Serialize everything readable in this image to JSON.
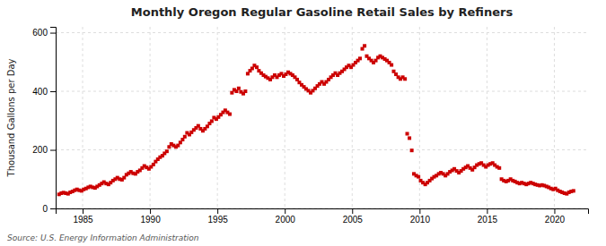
{
  "chart_data": {
    "type": "scatter",
    "title": "Monthly Oregon Regular Gasoline Retail Sales by Refiners",
    "y_label": "Thousand Gallons per Day",
    "source": "Source: U.S. Energy Information Administration",
    "xlim": [
      1983.0,
      2022.5
    ],
    "ylim": [
      0,
      620
    ],
    "yticks": [
      0,
      200,
      400,
      600
    ],
    "xticks": [
      1985,
      1990,
      1995,
      2000,
      2005,
      2010,
      2015,
      2020
    ],
    "grid": true,
    "color": "#CC0000",
    "marker": "square",
    "x": [
      1983.25,
      1983.42,
      1983.58,
      1983.75,
      1983.92,
      1984.08,
      1984.25,
      1984.42,
      1984.58,
      1984.75,
      1984.92,
      1985.08,
      1985.25,
      1985.42,
      1985.58,
      1985.75,
      1985.92,
      1986.08,
      1986.25,
      1986.42,
      1986.58,
      1986.75,
      1986.92,
      1987.08,
      1987.25,
      1987.42,
      1987.58,
      1987.75,
      1987.92,
      1988.08,
      1988.25,
      1988.42,
      1988.58,
      1988.75,
      1988.92,
      1989.08,
      1989.25,
      1989.42,
      1989.58,
      1989.75,
      1989.92,
      1990.08,
      1990.25,
      1990.42,
      1990.58,
      1990.75,
      1990.92,
      1991.08,
      1991.25,
      1991.42,
      1991.58,
      1991.75,
      1991.92,
      1992.08,
      1992.25,
      1992.42,
      1992.58,
      1992.75,
      1992.92,
      1993.08,
      1993.25,
      1993.42,
      1993.58,
      1993.75,
      1993.92,
      1994.08,
      1994.25,
      1994.42,
      1994.58,
      1994.75,
      1994.92,
      1995.08,
      1995.25,
      1995.42,
      1995.58,
      1995.75,
      1995.92,
      1996.08,
      1996.25,
      1996.42,
      1996.58,
      1996.75,
      1996.92,
      1997.08,
      1997.25,
      1997.42,
      1997.58,
      1997.75,
      1997.92,
      1998.08,
      1998.25,
      1998.42,
      1998.58,
      1998.75,
      1998.92,
      1999.08,
      1999.25,
      1999.42,
      1999.58,
      1999.75,
      1999.92,
      2000.08,
      2000.25,
      2000.42,
      2000.58,
      2000.75,
      2000.92,
      2001.08,
      2001.25,
      2001.42,
      2001.58,
      2001.75,
      2001.92,
      2002.08,
      2002.25,
      2002.42,
      2002.58,
      2002.75,
      2002.92,
      2003.08,
      2003.25,
      2003.42,
      2003.58,
      2003.75,
      2003.92,
      2004.08,
      2004.25,
      2004.42,
      2004.58,
      2004.75,
      2004.92,
      2005.08,
      2005.25,
      2005.42,
      2005.58,
      2005.75,
      2005.92,
      2006.08,
      2006.25,
      2006.42,
      2006.58,
      2006.75,
      2006.92,
      2007.08,
      2007.25,
      2007.42,
      2007.58,
      2007.75,
      2007.92,
      2008.08,
      2008.25,
      2008.42,
      2008.58,
      2008.75,
      2008.92,
      2009.08,
      2009.25,
      2009.42,
      2009.58,
      2009.75,
      2009.92,
      2010.08,
      2010.25,
      2010.42,
      2010.58,
      2010.75,
      2010.92,
      2011.08,
      2011.25,
      2011.42,
      2011.58,
      2011.75,
      2011.92,
      2012.08,
      2012.25,
      2012.42,
      2012.58,
      2012.75,
      2012.92,
      2013.08,
      2013.25,
      2013.42,
      2013.58,
      2013.75,
      2013.92,
      2014.08,
      2014.25,
      2014.42,
      2014.58,
      2014.75,
      2014.92,
      2015.08,
      2015.25,
      2015.42,
      2015.58,
      2015.75,
      2015.92,
      2016.08,
      2016.25,
      2016.42,
      2016.58,
      2016.75,
      2016.92,
      2017.08,
      2017.25,
      2017.42,
      2017.58,
      2017.75,
      2017.92,
      2018.08,
      2018.25,
      2018.42,
      2018.58,
      2018.75,
      2018.92,
      2019.08,
      2019.25,
      2019.42,
      2019.58,
      2019.75,
      2019.92,
      2020.08,
      2020.25,
      2020.42,
      2020.58,
      2020.75,
      2020.92,
      2021.08,
      2021.25,
      2021.42
    ],
    "values": [
      48,
      52,
      54,
      52,
      50,
      55,
      58,
      62,
      65,
      62,
      60,
      65,
      68,
      72,
      75,
      72,
      70,
      75,
      80,
      85,
      90,
      85,
      82,
      88,
      95,
      100,
      105,
      100,
      98,
      105,
      115,
      120,
      125,
      120,
      118,
      125,
      130,
      138,
      145,
      140,
      135,
      142,
      150,
      160,
      168,
      175,
      180,
      188,
      195,
      210,
      220,
      215,
      210,
      215,
      225,
      235,
      245,
      258,
      252,
      260,
      268,
      275,
      282,
      272,
      265,
      272,
      280,
      290,
      298,
      310,
      305,
      312,
      320,
      328,
      335,
      328,
      322,
      395,
      405,
      400,
      410,
      398,
      392,
      400,
      460,
      470,
      478,
      488,
      482,
      470,
      462,
      455,
      450,
      445,
      440,
      448,
      455,
      448,
      455,
      460,
      452,
      458,
      465,
      460,
      455,
      448,
      440,
      430,
      422,
      415,
      408,
      402,
      395,
      402,
      410,
      418,
      425,
      432,
      425,
      432,
      440,
      448,
      455,
      462,
      455,
      462,
      468,
      475,
      482,
      488,
      482,
      490,
      498,
      505,
      512,
      545,
      555,
      520,
      512,
      505,
      498,
      505,
      515,
      520,
      515,
      510,
      505,
      498,
      490,
      468,
      458,
      448,
      442,
      448,
      442,
      255,
      240,
      198,
      118,
      112,
      108,
      95,
      88,
      82,
      88,
      95,
      102,
      108,
      112,
      118,
      122,
      118,
      112,
      118,
      125,
      130,
      135,
      128,
      122,
      128,
      135,
      140,
      145,
      138,
      132,
      140,
      148,
      152,
      155,
      148,
      142,
      148,
      152,
      155,
      148,
      142,
      138,
      100,
      95,
      92,
      95,
      100,
      95,
      92,
      88,
      85,
      88,
      85,
      82,
      85,
      88,
      85,
      82,
      80,
      78,
      80,
      78,
      75,
      72,
      68,
      65,
      68,
      62,
      58,
      55,
      52,
      50,
      55,
      58,
      60
    ]
  }
}
